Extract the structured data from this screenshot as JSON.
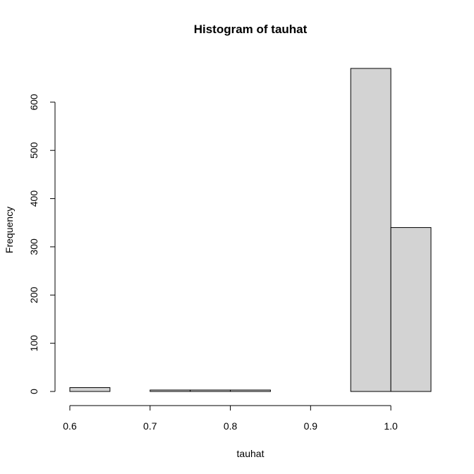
{
  "chart_data": {
    "type": "bar",
    "title": "Histogram of tauhat",
    "xlabel": "tauhat",
    "ylabel": "Frequency",
    "bins": [
      {
        "start": 0.6,
        "end": 0.65,
        "count": 8
      },
      {
        "start": 0.65,
        "end": 0.7,
        "count": 0
      },
      {
        "start": 0.7,
        "end": 0.75,
        "count": 3
      },
      {
        "start": 0.75,
        "end": 0.8,
        "count": 3
      },
      {
        "start": 0.8,
        "end": 0.85,
        "count": 3
      },
      {
        "start": 0.85,
        "end": 0.9,
        "count": 0
      },
      {
        "start": 0.9,
        "end": 0.95,
        "count": 0
      },
      {
        "start": 0.95,
        "end": 1.0,
        "count": 670
      },
      {
        "start": 1.0,
        "end": 1.05,
        "count": 340
      }
    ],
    "xlim": [
      0.6,
      1.05
    ],
    "ylim": [
      0,
      670
    ],
    "xticks": [
      {
        "value": 0.6,
        "label": "0.6"
      },
      {
        "value": 0.7,
        "label": "0.7"
      },
      {
        "value": 0.8,
        "label": "0.8"
      },
      {
        "value": 0.9,
        "label": "0.9"
      },
      {
        "value": 1.0,
        "label": "1.0"
      }
    ],
    "yticks": [
      {
        "value": 0,
        "label": "0"
      },
      {
        "value": 100,
        "label": "100"
      },
      {
        "value": 200,
        "label": "200"
      },
      {
        "value": 300,
        "label": "300"
      },
      {
        "value": 400,
        "label": "400"
      },
      {
        "value": 500,
        "label": "500"
      },
      {
        "value": 600,
        "label": "600"
      }
    ],
    "colors": {
      "bar_fill": "#d3d3d3",
      "bar_stroke": "#000000"
    }
  }
}
